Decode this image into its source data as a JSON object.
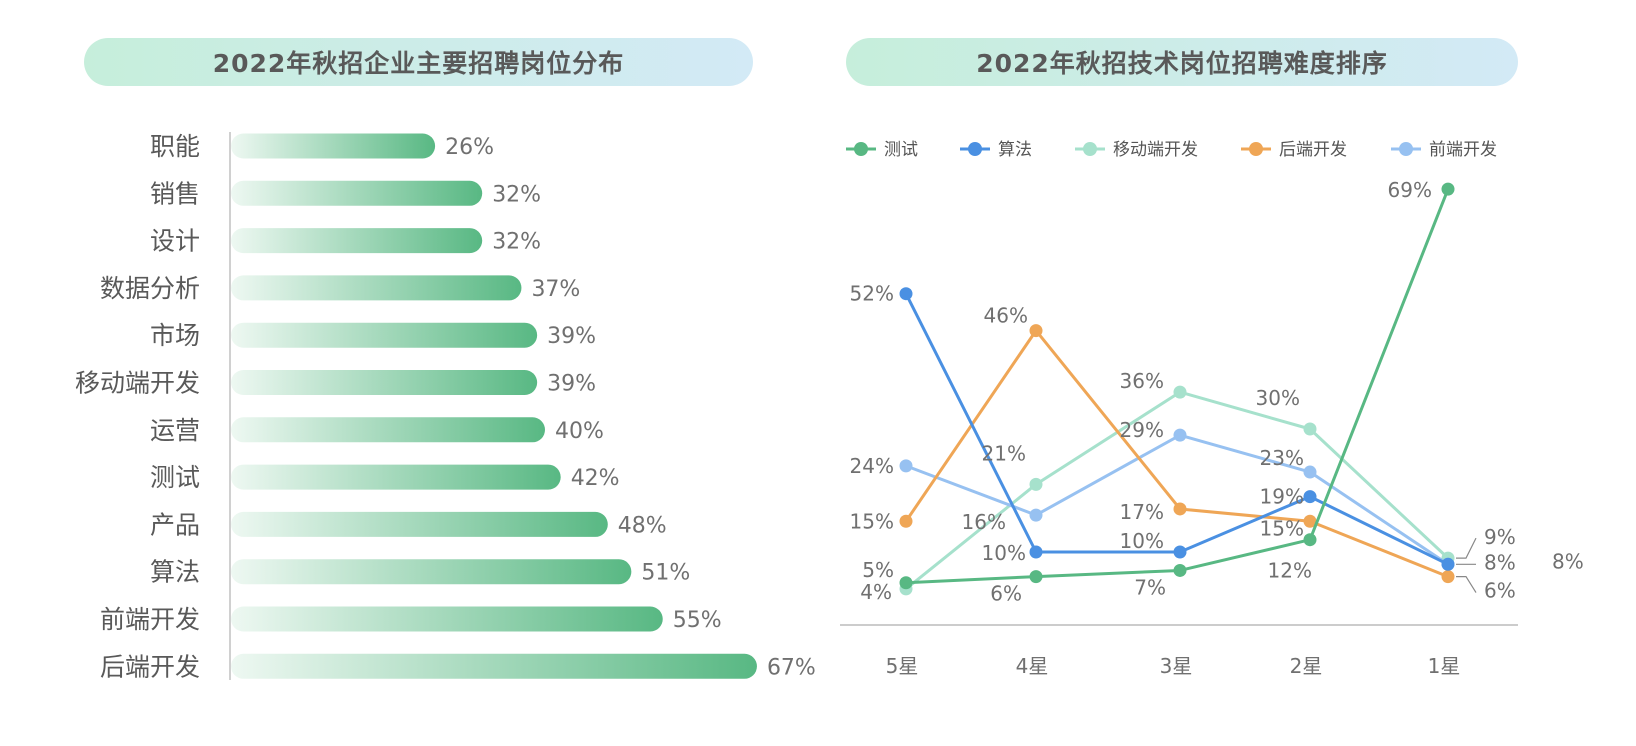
{
  "left_title": "2022年秋招企业主要招聘岗位分布",
  "right_title": "2022年秋招技术岗位招聘难度排序",
  "colors": {
    "测试": "#58b883",
    "算法": "#4a90e2",
    "移动端开发": "#a6e1cc",
    "后端开发": "#efa656",
    "前端开发": "#97c1f1",
    "bar_start": "#eef8f2",
    "bar_end": "#58b883"
  },
  "chart_data": [
    {
      "type": "bar",
      "orientation": "horizontal",
      "title": "2022年秋招企业主要招聘岗位分布",
      "categories": [
        "职能",
        "销售",
        "设计",
        "数据分析",
        "市场",
        "移动端开发",
        "运营",
        "测试",
        "产品",
        "算法",
        "前端开发",
        "后端开发"
      ],
      "values": [
        26,
        32,
        32,
        37,
        39,
        39,
        40,
        42,
        48,
        51,
        55,
        67
      ],
      "labels": [
        "26%",
        "32%",
        "32%",
        "37%",
        "39%",
        "39%",
        "40%",
        "42%",
        "48%",
        "51%",
        "55%",
        "67%"
      ],
      "unit": "%"
    },
    {
      "type": "line",
      "title": "2022年秋招技术岗位招聘难度排序",
      "categories": [
        "5星",
        "4星",
        "3星",
        "2星",
        "1星"
      ],
      "legend_position": "top",
      "series": [
        {
          "name": "测试",
          "values": [
            5,
            6,
            7,
            12,
            69
          ],
          "labels": [
            "5%",
            "6%",
            "7%",
            "12%",
            "69%"
          ]
        },
        {
          "name": "算法",
          "values": [
            52,
            10,
            10,
            19,
            8
          ],
          "labels": [
            "52%",
            "10%",
            "10%",
            "19%",
            "8%"
          ]
        },
        {
          "name": "移动端开发",
          "values": [
            4,
            21,
            36,
            30,
            9
          ],
          "labels": [
            "4%",
            "21%",
            "36%",
            "30%",
            "9%"
          ]
        },
        {
          "name": "后端开发",
          "values": [
            15,
            46,
            17,
            15,
            6
          ],
          "labels": [
            "15%",
            "46%",
            "17%",
            "15%",
            "6%"
          ]
        },
        {
          "name": "前端开发",
          "values": [
            24,
            16,
            29,
            23,
            8
          ],
          "labels": [
            "24%",
            "16%",
            "29%",
            "23%",
            "8%"
          ]
        }
      ]
    }
  ]
}
